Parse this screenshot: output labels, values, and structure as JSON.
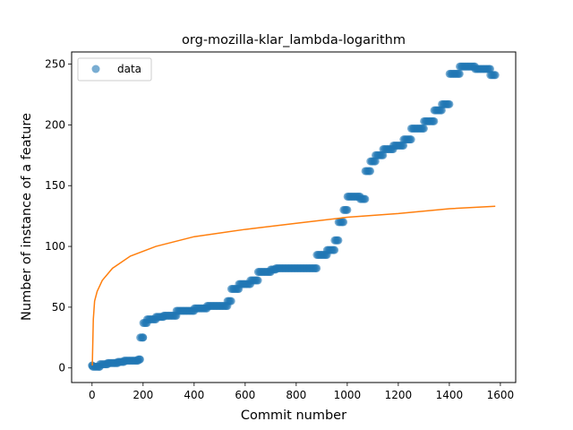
{
  "chart_data": {
    "type": "scatter",
    "title": "org-mozilla-klar_lambda-logarithm",
    "xlabel": "Commit number",
    "ylabel": "Number of instance of a feature",
    "xlim": [
      -80,
      1660
    ],
    "ylim": [
      -12,
      260
    ],
    "xticks": [
      "0",
      "200",
      "400",
      "600",
      "800",
      "1000",
      "1200",
      "1400",
      "1600"
    ],
    "yticks": [
      "0",
      "50",
      "100",
      "150",
      "200",
      "250"
    ],
    "grid": false,
    "legend": {
      "placement": "top-left",
      "entries": [
        "data"
      ]
    },
    "series": [
      {
        "name": "data",
        "kind": "scatter",
        "color": "#1f77b4",
        "segments": [
          [
            0,
            1,
            2
          ],
          [
            3,
            30,
            1
          ],
          [
            31,
            60,
            3
          ],
          [
            61,
            100,
            4
          ],
          [
            101,
            125,
            5
          ],
          [
            126,
            180,
            6
          ],
          [
            181,
            188,
            7
          ],
          [
            189,
            200,
            25
          ],
          [
            201,
            215,
            37
          ],
          [
            216,
            250,
            40
          ],
          [
            251,
            280,
            42
          ],
          [
            281,
            330,
            43
          ],
          [
            331,
            400,
            47
          ],
          [
            401,
            450,
            49
          ],
          [
            451,
            530,
            51
          ],
          [
            531,
            545,
            55
          ],
          [
            546,
            575,
            65
          ],
          [
            576,
            620,
            69
          ],
          [
            621,
            650,
            72
          ],
          [
            651,
            700,
            79
          ],
          [
            701,
            720,
            81
          ],
          [
            721,
            880,
            82
          ],
          [
            881,
            920,
            93
          ],
          [
            921,
            950,
            97
          ],
          [
            951,
            965,
            105
          ],
          [
            966,
            985,
            120
          ],
          [
            986,
            1000,
            130
          ],
          [
            1001,
            1050,
            141
          ],
          [
            1051,
            1070,
            139
          ],
          [
            1071,
            1090,
            162
          ],
          [
            1091,
            1110,
            170
          ],
          [
            1111,
            1140,
            175
          ],
          [
            1141,
            1180,
            180
          ],
          [
            1181,
            1220,
            183
          ],
          [
            1221,
            1250,
            188
          ],
          [
            1251,
            1300,
            197
          ],
          [
            1301,
            1340,
            203
          ],
          [
            1341,
            1370,
            212
          ],
          [
            1371,
            1400,
            217
          ],
          [
            1401,
            1440,
            242
          ],
          [
            1441,
            1500,
            248
          ],
          [
            1501,
            1560,
            246
          ],
          [
            1561,
            1580,
            241
          ]
        ]
      },
      {
        "name": "",
        "kind": "line",
        "color": "#ff7f0e",
        "model": "logarithmic",
        "points": [
          [
            1,
            2
          ],
          [
            5,
            40
          ],
          [
            10,
            55
          ],
          [
            20,
            63
          ],
          [
            40,
            72
          ],
          [
            80,
            82
          ],
          [
            150,
            92
          ],
          [
            250,
            100
          ],
          [
            400,
            108
          ],
          [
            600,
            114
          ],
          [
            800,
            119
          ],
          [
            1000,
            124
          ],
          [
            1200,
            127
          ],
          [
            1400,
            131
          ],
          [
            1580,
            133
          ]
        ]
      }
    ]
  }
}
